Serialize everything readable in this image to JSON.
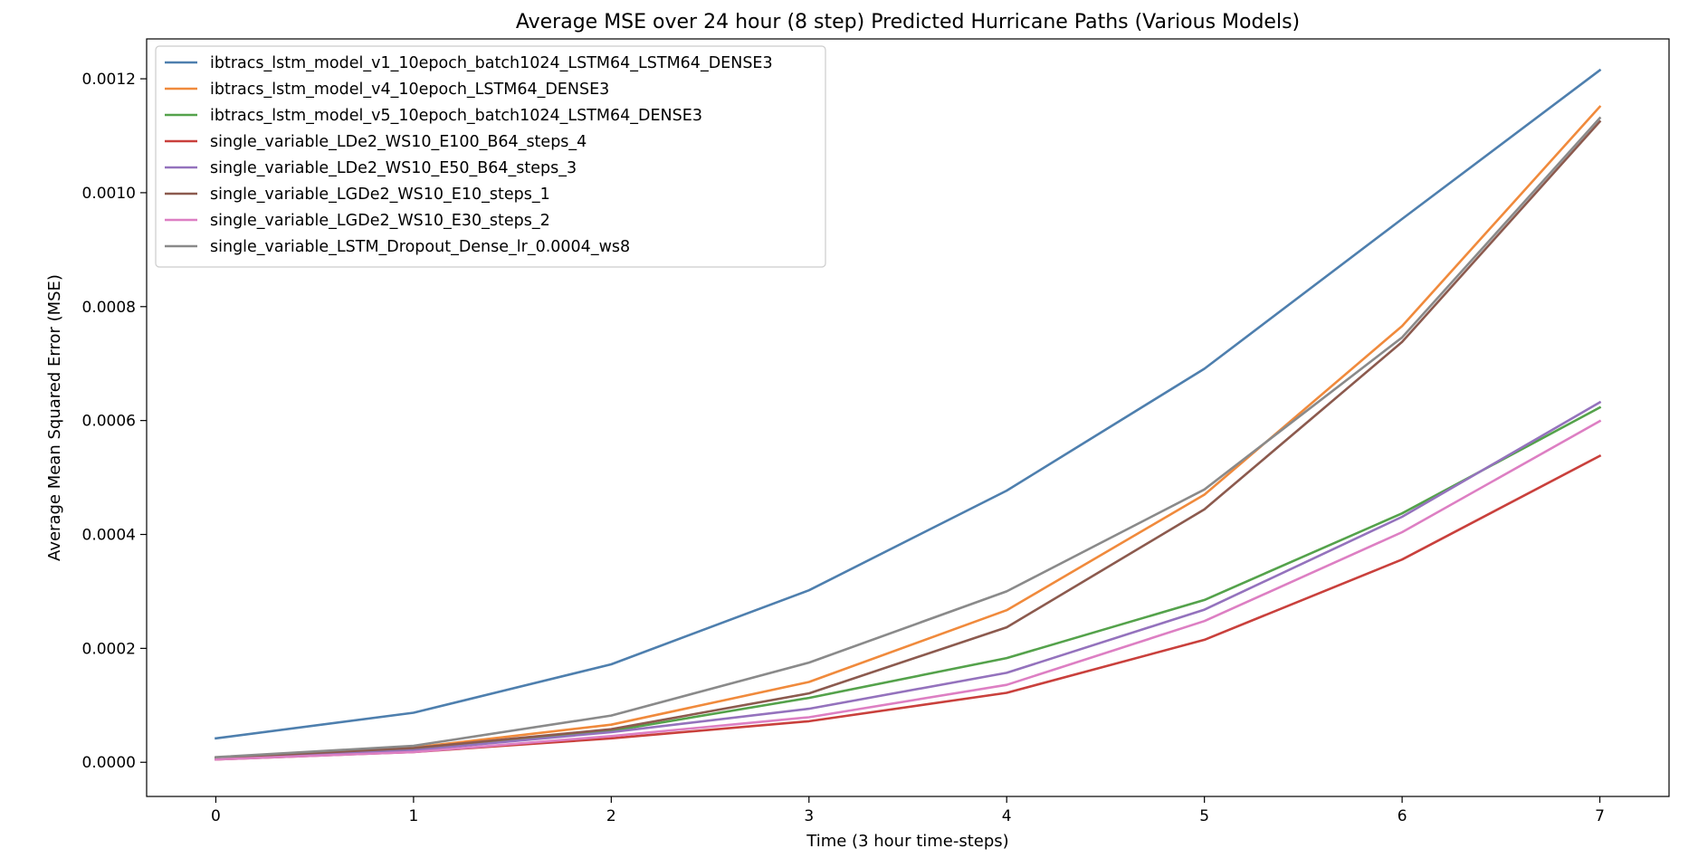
{
  "chart_data": {
    "type": "line",
    "title": "Average MSE over 24 hour (8 step) Predicted Hurricane Paths (Various Models)",
    "xlabel": "Time (3 hour time-steps)",
    "ylabel": "Average Mean Squared Error (MSE)",
    "x": [
      0,
      1,
      2,
      3,
      4,
      5,
      6,
      7
    ],
    "xticks": [
      "0",
      "1",
      "2",
      "3",
      "4",
      "5",
      "6",
      "7"
    ],
    "yticks": [
      0,
      0.0002,
      0.0004,
      0.0006,
      0.0008,
      0.001,
      0.0012
    ],
    "ytick_labels": [
      "0.0000",
      "0.0002",
      "0.0004",
      "0.0006",
      "0.0008",
      "0.0010",
      "0.0012"
    ],
    "xlim": [
      -0.35,
      7.35
    ],
    "ylim": [
      -6e-05,
      0.00127
    ],
    "grid": false,
    "legend_position": "top-left",
    "series": [
      {
        "name": "ibtracs_lstm_model_v1_10epoch_batch1024_LSTM64_LSTM64_DENSE3",
        "color": "#4e7fae",
        "values": [
          4.2e-05,
          8.7e-05,
          0.000172,
          0.000302,
          0.000477,
          0.000691,
          0.000954,
          0.001215
        ]
      },
      {
        "name": "ibtracs_lstm_model_v4_10epoch_LSTM64_DENSE3",
        "color": "#f08a3c",
        "values": [
          8e-06,
          2.6e-05,
          6.6e-05,
          0.000141,
          0.000267,
          0.00047,
          0.000766,
          0.001151
        ]
      },
      {
        "name": "ibtracs_lstm_model_v5_10epoch_batch1024_LSTM64_DENSE3",
        "color": "#54a24b",
        "values": [
          7e-06,
          2.2e-05,
          5.5e-05,
          0.000113,
          0.000183,
          0.000285,
          0.000437,
          0.000623
        ]
      },
      {
        "name": "single_variable_LDe2_WS10_E100_B64_steps_4",
        "color": "#c9403c",
        "values": [
          5e-06,
          1.8e-05,
          4.2e-05,
          7.2e-05,
          0.000122,
          0.000215,
          0.000356,
          0.000538
        ]
      },
      {
        "name": "single_variable_LDe2_WS10_E50_B64_steps_3",
        "color": "#9472bd",
        "values": [
          6e-06,
          2.1e-05,
          5.3e-05,
          9.4e-05,
          0.000157,
          0.000268,
          0.000431,
          0.000632
        ]
      },
      {
        "name": "single_variable_LGDe2_WS10_E10_steps_1",
        "color": "#8c5a4e",
        "values": [
          8e-06,
          2.5e-05,
          5.8e-05,
          0.000121,
          0.000237,
          0.000444,
          0.000738,
          0.001125
        ]
      },
      {
        "name": "single_variable_LGDe2_WS10_E30_steps_2",
        "color": "#dd7fc3",
        "values": [
          5e-06,
          1.8e-05,
          4.6e-05,
          7.9e-05,
          0.000136,
          0.000248,
          0.000404,
          0.000599
        ]
      },
      {
        "name": "single_variable_LSTM_Dropout_Dense_lr_0.0004_ws8",
        "color": "#8a8a8a",
        "values": [
          9e-06,
          2.9e-05,
          8.2e-05,
          0.000175,
          0.0003,
          0.000479,
          0.000746,
          0.001131
        ]
      }
    ]
  }
}
